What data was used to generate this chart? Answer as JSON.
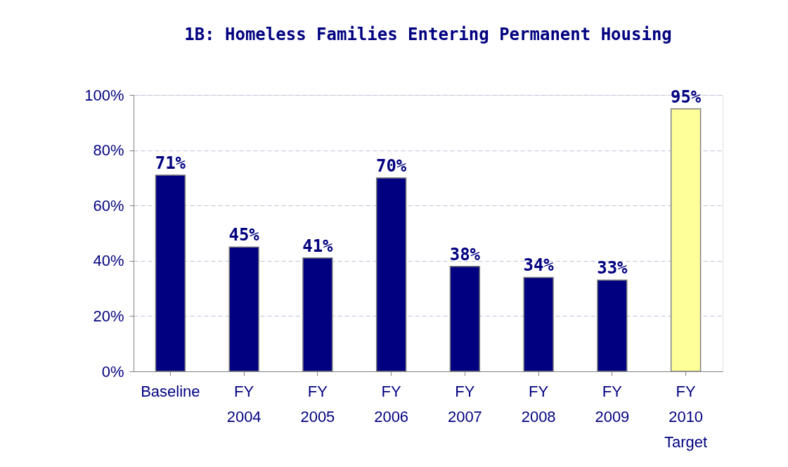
{
  "chart_data": {
    "type": "bar",
    "title": "1B: Homeless Families Entering Permanent Housing",
    "categories": [
      "Baseline",
      "FY 2004",
      "FY 2005",
      "FY 2006",
      "FY 2007",
      "FY 2008",
      "FY 2009",
      "FY 2010 Target"
    ],
    "values": [
      71,
      45,
      41,
      70,
      38,
      34,
      33,
      95
    ],
    "value_labels": [
      "71%",
      "45%",
      "41%",
      "70%",
      "38%",
      "34%",
      "33%",
      "95%"
    ],
    "colors": [
      "#000080",
      "#000080",
      "#000080",
      "#000080",
      "#000080",
      "#000080",
      "#000080",
      "#ffff99"
    ],
    "ylim": [
      0,
      100
    ],
    "yticks": [
      {
        "value": 0,
        "label": "0%"
      },
      {
        "value": 20,
        "label": "20%"
      },
      {
        "value": 40,
        "label": "40%"
      },
      {
        "value": 60,
        "label": "60%"
      },
      {
        "value": 80,
        "label": "80%"
      },
      {
        "value": 100,
        "label": "100%"
      }
    ],
    "grid": "y"
  }
}
